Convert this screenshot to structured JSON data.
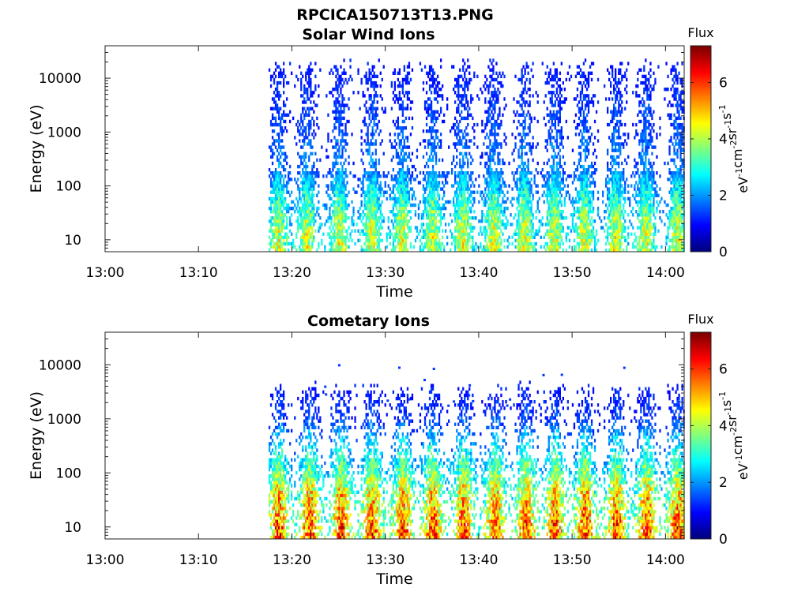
{
  "figure": {
    "title": "RPCICA150713T13.PNG"
  },
  "chart_data": [
    {
      "type": "heatmap",
      "title": "Solar Wind Ions",
      "xlabel": "Time",
      "ylabel": "Energy (eV)",
      "x_ticks": [
        "13:00",
        "13:10",
        "13:20",
        "13:30",
        "13:40",
        "13:50",
        "14:00"
      ],
      "xlim": [
        "13:00",
        "14:02"
      ],
      "y_scale": "log",
      "y_ticks": [
        10,
        100,
        1000,
        10000
      ],
      "y_tick_labels": [
        "10",
        "100",
        "1000",
        "10000"
      ],
      "ylim": [
        6,
        40000
      ],
      "colorbar": {
        "label": "Flux",
        "unit": "eV-1cm-2sr-1s-1",
        "range": [
          0,
          7.3
        ],
        "ticks": [
          0,
          2,
          4,
          6
        ]
      },
      "data_start": "13:17.5",
      "bursts": [
        "13:18.5",
        "13:21.5",
        "13:25.0",
        "13:28.5",
        "13:31.7",
        "13:35.0",
        "13:38.2",
        "13:41.5",
        "13:44.8",
        "13:48.0",
        "13:51.2",
        "13:54.6",
        "13:57.8",
        "14:01.2"
      ],
      "energy_profile": [
        {
          "energy": 8,
          "flux": 4.3
        },
        {
          "energy": 20,
          "flux": 4.0
        },
        {
          "energy": 50,
          "flux": 3.3
        },
        {
          "energy": 200,
          "flux": 2.0
        },
        {
          "energy": 1000,
          "flux": 1.6
        },
        {
          "energy": 5000,
          "flux": 1.3
        },
        {
          "energy": 15000,
          "flux": 1.1
        }
      ]
    },
    {
      "type": "heatmap",
      "title": "Cometary Ions",
      "xlabel": "Time",
      "ylabel": "Energy (eV)",
      "x_ticks": [
        "13:00",
        "13:10",
        "13:20",
        "13:30",
        "13:40",
        "13:50",
        "14:00"
      ],
      "xlim": [
        "13:00",
        "14:02"
      ],
      "y_scale": "log",
      "y_ticks": [
        10,
        100,
        1000,
        10000
      ],
      "y_tick_labels": [
        "10",
        "100",
        "1000",
        "10000"
      ],
      "ylim": [
        6,
        40000
      ],
      "colorbar": {
        "label": "Flux",
        "unit": "eV-1cm-2sr-1s-1",
        "range": [
          0,
          7.3
        ],
        "ticks": [
          0,
          2,
          4,
          6
        ]
      },
      "data_start": "13:17.5",
      "bursts": [
        "13:18.5",
        "13:21.8",
        "13:25.2",
        "13:28.5",
        "13:31.8",
        "13:35.0",
        "13:38.3",
        "13:41.7",
        "13:45.0",
        "13:48.1",
        "13:51.3",
        "13:54.7",
        "13:57.9",
        "14:01.2"
      ],
      "energy_profile": [
        {
          "energy": 8,
          "flux": 5.9
        },
        {
          "energy": 20,
          "flux": 5.3
        },
        {
          "energy": 40,
          "flux": 5.0
        },
        {
          "energy": 100,
          "flux": 3.8
        },
        {
          "energy": 300,
          "flux": 2.8
        },
        {
          "energy": 1000,
          "flux": 1.5
        },
        {
          "energy": 3000,
          "flux": 1.1
        }
      ]
    }
  ]
}
